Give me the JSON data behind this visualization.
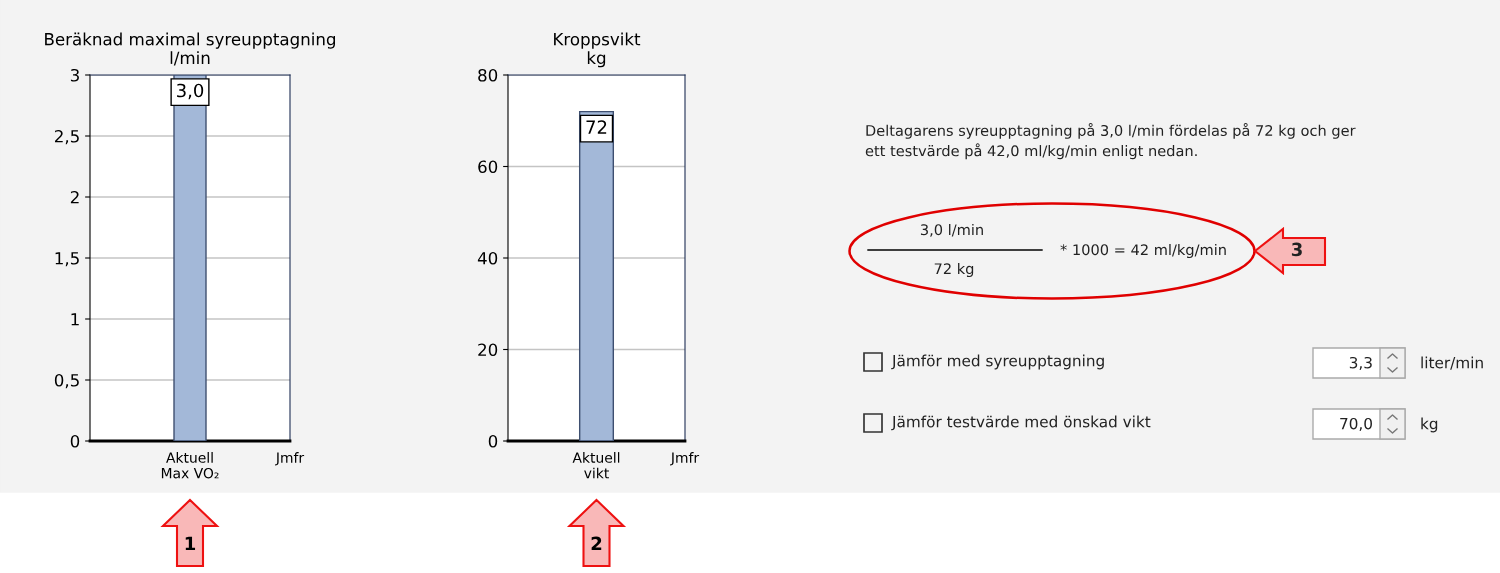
{
  "chart_data": [
    {
      "type": "bar",
      "title": "Beräknad maximal syreupptagning\nl/min",
      "categories": [
        "Aktuell\nMax VO₂",
        "Jmfr"
      ],
      "values": [
        3.0,
        null
      ],
      "color": "#a3b8d8",
      "value_labels": [
        "3,0",
        null
      ],
      "ylim": [
        0,
        3
      ],
      "yticks": [
        0,
        {
          "value": 0.5,
          "label": "0,5"
        },
        1,
        {
          "value": 1.5,
          "label": "1,5"
        },
        2,
        {
          "value": 2.5,
          "label": "2,5"
        },
        3
      ],
      "grid": "y",
      "annotations": [
        "1"
      ]
    },
    {
      "type": "bar",
      "title": "Kroppsvikt\nkg",
      "categories": [
        "Aktuell\nvikt",
        "Jmfr"
      ],
      "values": [
        72,
        null
      ],
      "color": "#a3b8d8",
      "value_labels": [
        "72",
        null
      ],
      "ylim": [
        0,
        80
      ],
      "yticks": [
        0,
        20,
        40,
        60,
        80
      ],
      "grid": "y",
      "annotations": [
        "2"
      ]
    },
    {
      "type": "other",
      "annotations": [
        "Deltagarens syreupptagning på 3,0 l/min fördelas på 72 kg och ger\nett testvärde på 42,0 ml/kg/min enligt nedan.",
        "3,0 l/min",
        "72 kg",
        "* 1000 = 42 ml/kg/min",
        "Jämför med syreupptagning",
        "3,3",
        "liter/min",
        "Jämför testvärde med önskad vikt",
        "70,0",
        "kg",
        "3"
      ]
    }
  ]
}
